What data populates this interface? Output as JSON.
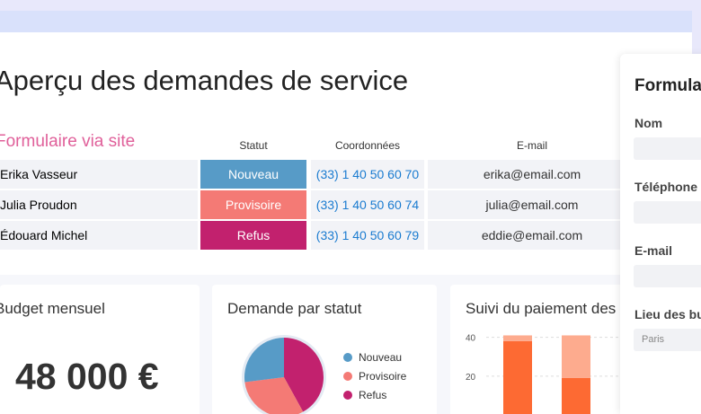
{
  "header": {
    "title": "Aperçu des demandes de service"
  },
  "table": {
    "group_title": "Formulaire via site",
    "columns": [
      "Statut",
      "Coordonnées",
      "E-mail"
    ],
    "rows": [
      [
        "Erika Vasseur",
        "Nouveau",
        "(33) 1 40 50 60 70",
        "erika@email.com"
      ],
      [
        "Julia Proudon",
        "Provisoire",
        "(33) 1 40 50 60 74",
        "julia@email.com"
      ],
      [
        "Édouard Michel",
        "Refus",
        "(33) 1 40 50 60 79",
        "eddie@email.com"
      ]
    ],
    "status_colors": [
      "#579bc7",
      "#f47a75",
      "#c2216e"
    ]
  },
  "budget": {
    "title": "Budget mensuel",
    "value": "48 000 €"
  },
  "chart_data": [
    {
      "type": "pie",
      "title": "Demande par statut",
      "categories": [
        "Nouveau",
        "Provisoire",
        "Refus"
      ],
      "values": [
        27,
        31,
        42
      ],
      "colors": [
        "#579bc7",
        "#f47a75",
        "#c2216e"
      ]
    },
    {
      "type": "stacked_bar",
      "title": "Suivi du paiement des",
      "categories": [
        null,
        null
      ],
      "ylim": [
        0,
        44
      ],
      "yticks": [
        20,
        40
      ],
      "grid": true,
      "series": [
        {
          "color": "#fd6a33",
          "values": [
            38,
            19
          ]
        },
        {
          "color": "#fdab8e",
          "values": [
            3,
            22
          ]
        }
      ]
    }
  ],
  "form": {
    "title": "Formulaire",
    "fields": [
      "Nom",
      "Téléphone",
      "E-mail",
      "Lieu des bu"
    ],
    "placeholder": "Paris"
  }
}
